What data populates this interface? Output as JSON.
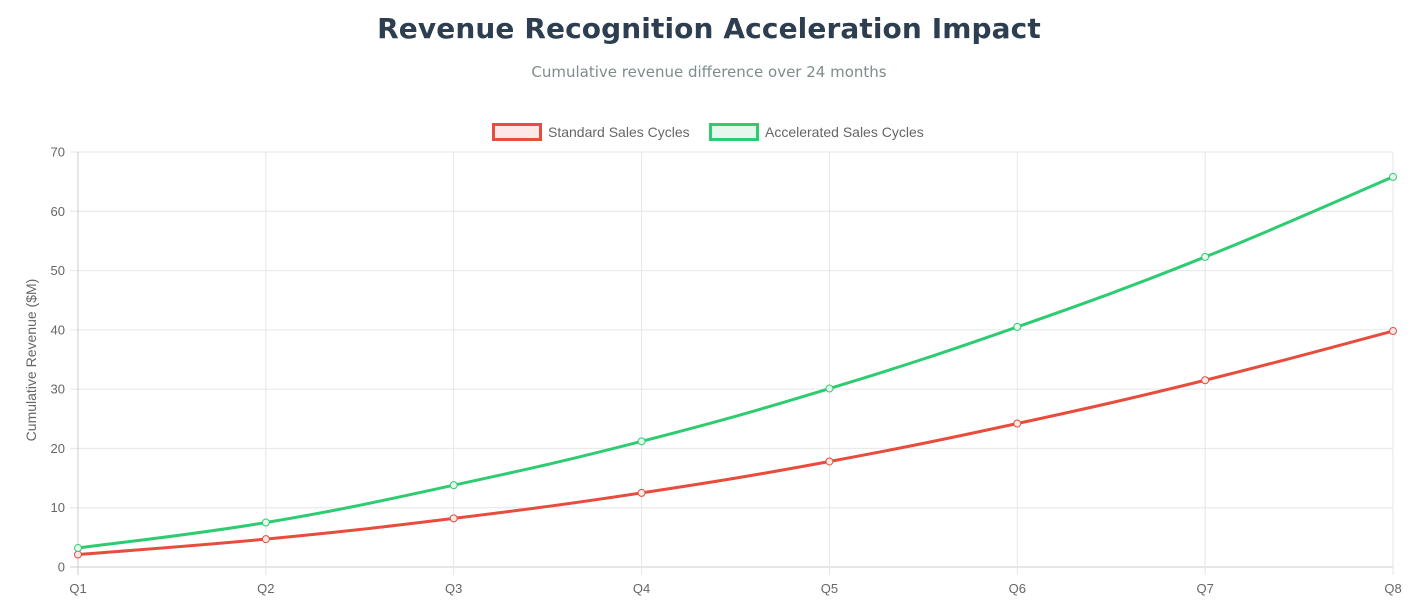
{
  "header": {
    "title": "Revenue Recognition Acceleration Impact",
    "subtitle": "Cumulative revenue difference over 24 months"
  },
  "chart_data": {
    "type": "line",
    "title": "Revenue Recognition Acceleration Impact",
    "subtitle": "Cumulative revenue difference over 24 months",
    "categories": [
      "Q1",
      "Q2",
      "Q3",
      "Q4",
      "Q5",
      "Q6",
      "Q7",
      "Q8"
    ],
    "xlabel": "",
    "ylabel": "Cumulative Revenue ($M)",
    "ylim": [
      0,
      70
    ],
    "yticks": [
      0,
      10,
      20,
      30,
      40,
      50,
      60,
      70
    ],
    "grid": true,
    "legend_position": "top-center",
    "series": [
      {
        "name": "Standard Sales Cycles",
        "color": "#e74c3c",
        "fill": "#fde8e6",
        "values": [
          2.1,
          4.7,
          8.2,
          12.5,
          17.8,
          24.2,
          31.5,
          39.8
        ]
      },
      {
        "name": "Accelerated Sales Cycles",
        "color": "#2ecc71",
        "fill": "#e6f8ee",
        "values": [
          3.2,
          7.5,
          13.8,
          21.2,
          30.1,
          40.5,
          52.3,
          65.8
        ]
      }
    ]
  }
}
